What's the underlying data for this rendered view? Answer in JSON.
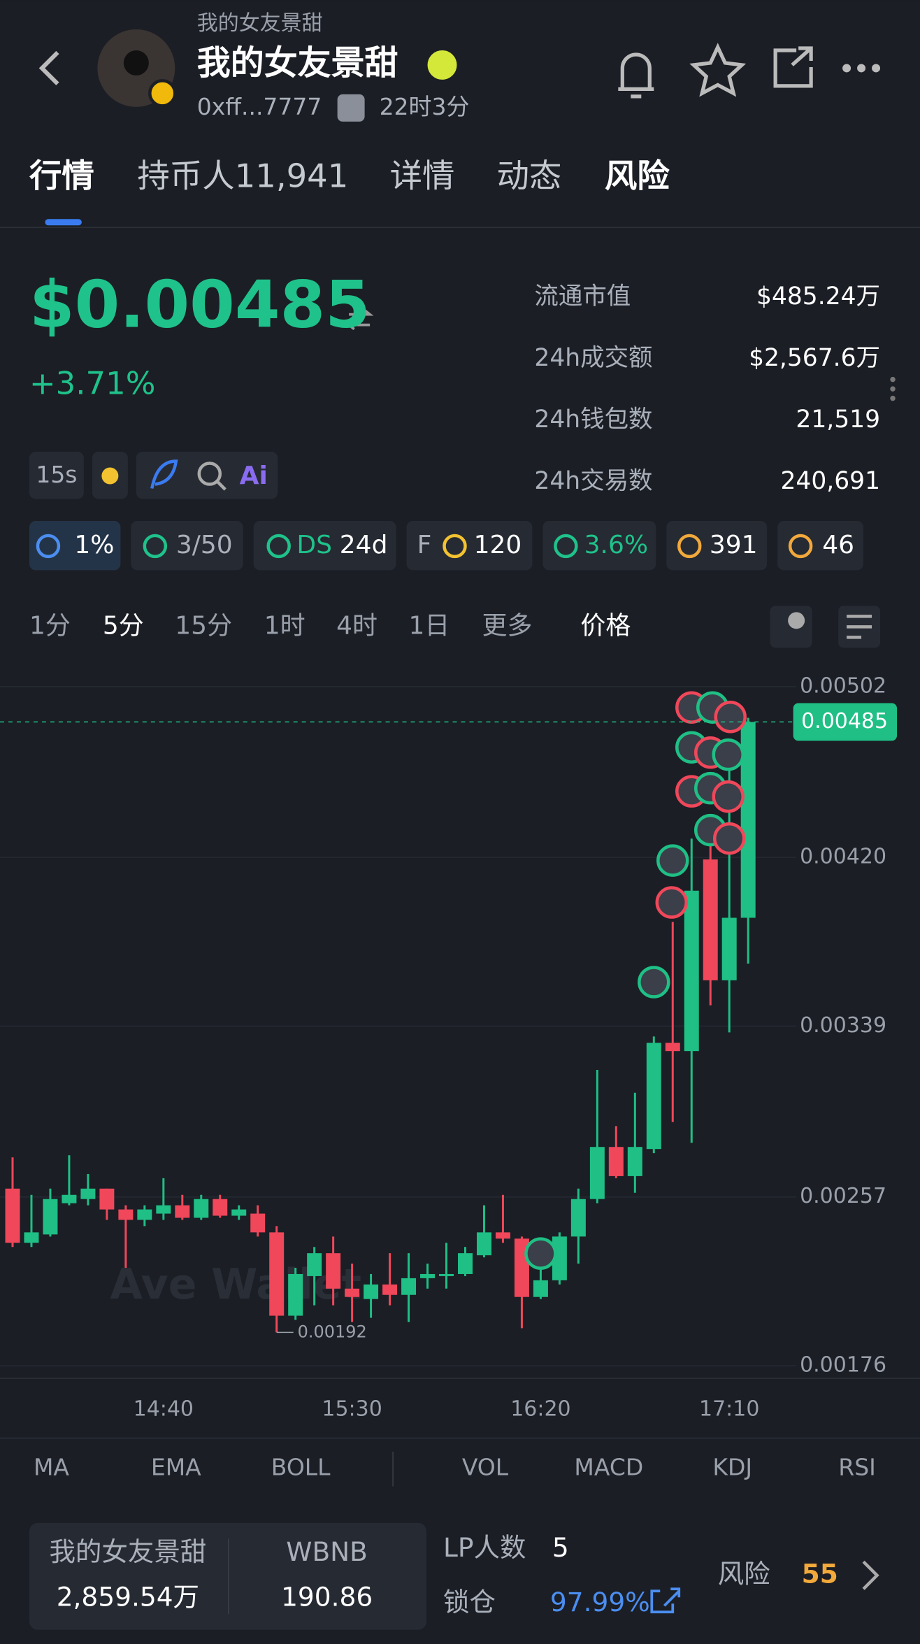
{
  "header": {
    "subtitle": "我的女友景甜",
    "name": "我的女友景甜",
    "address": "0xff...7777",
    "age": "22时3分"
  },
  "tabs": [
    "行情",
    "持币人11,941",
    "详情",
    "动态",
    "风险"
  ],
  "price": {
    "value": "$0.00485",
    "change": "+3.71%"
  },
  "stats": [
    {
      "label": "流通市值",
      "value": "$485.24万"
    },
    {
      "label": "24h成交额",
      "value": "$2,567.6万"
    },
    {
      "label": "24h钱包数",
      "value": "21,519"
    },
    {
      "label": "24h交易数",
      "value": "240,691"
    }
  ],
  "tools": {
    "interval": "15s",
    "ai": "Ai"
  },
  "badges": [
    "1%",
    "3/50",
    "DS",
    "24d",
    "F",
    "120",
    "3.6%",
    "391",
    "46"
  ],
  "timeframes": [
    "1分",
    "5分",
    "15分",
    "1时",
    "4时",
    "1日",
    "更多",
    "价格"
  ],
  "chart_data": {
    "type": "candlestick",
    "watermark": "Ave Wallet",
    "categories": [
      null,
      null,
      null,
      null,
      null,
      null,
      null,
      null,
      "14:40",
      null,
      null,
      null,
      null,
      null,
      null,
      null,
      null,
      null,
      "15:30",
      null,
      null,
      null,
      null,
      null,
      null,
      null,
      null,
      null,
      "16:20",
      null,
      null,
      null,
      null,
      null,
      null,
      null,
      null,
      null,
      "17:10",
      null
    ],
    "open": [
      0.00261,
      0.00235,
      0.00239,
      0.00254,
      0.00256,
      0.00261,
      0.00251,
      0.00246,
      0.00249,
      0.00253,
      0.00247,
      0.00256,
      0.00248,
      0.00249,
      0.0024,
      0.002,
      0.00219,
      0.0023,
      0.00213,
      0.00208,
      0.00215,
      0.0021,
      0.00218,
      0.00219,
      0.0022,
      0.00229,
      0.0024,
      0.00237,
      0.00209,
      0.00217,
      0.00238,
      0.00256,
      0.00281,
      0.00267,
      0.0028,
      0.00331,
      0.00327,
      0.00419,
      0.00361,
      0.00391
    ],
    "high": [
      0.00276,
      0.00258,
      0.00261,
      0.00277,
      0.00268,
      0.00261,
      0.00253,
      0.00253,
      0.00266,
      0.00258,
      0.00258,
      0.00258,
      0.00253,
      0.00253,
      0.00243,
      0.00223,
      0.00233,
      0.00238,
      0.00225,
      0.0022,
      0.0023,
      0.0023,
      0.00225,
      0.00235,
      0.00233,
      0.00253,
      0.00258,
      0.00238,
      0.00225,
      0.0024,
      0.00261,
      0.00318,
      0.00291,
      0.00307,
      0.00334,
      0.00389,
      0.00429,
      0.00429,
      0.00464,
      0.00487
    ],
    "low": [
      0.00233,
      0.00233,
      0.00238,
      0.00253,
      0.00253,
      0.00246,
      0.00223,
      0.00243,
      0.00246,
      0.00246,
      0.00246,
      0.00247,
      0.00246,
      0.00238,
      0.00192,
      0.00198,
      0.00205,
      0.00205,
      0.00197,
      0.00199,
      0.00205,
      0.00197,
      0.00213,
      0.00213,
      0.00219,
      0.00228,
      0.00235,
      0.00194,
      0.00208,
      0.00215,
      0.00225,
      0.00254,
      0.00266,
      0.00259,
      0.00278,
      0.00293,
      0.00283,
      0.00349,
      0.00336,
      0.00369
    ],
    "close": [
      0.00235,
      0.0024,
      0.00256,
      0.00258,
      0.00261,
      0.00251,
      0.00246,
      0.00251,
      0.00253,
      0.00247,
      0.00256,
      0.00248,
      0.00251,
      0.0024,
      0.002,
      0.0022,
      0.0023,
      0.00213,
      0.00209,
      0.00215,
      0.0021,
      0.00218,
      0.0022,
      0.0022,
      0.0023,
      0.0024,
      0.00237,
      0.00209,
      0.00217,
      0.00238,
      0.00256,
      0.00281,
      0.00267,
      0.00281,
      0.00331,
      0.00327,
      0.00404,
      0.00361,
      0.00391,
      0.00485
    ],
    "up_color": "#1fbf85",
    "down_color": "#f0475a",
    "ylim": [
      0.00176,
      0.00502
    ],
    "yticks": [
      0.00502,
      {
        "value": 0.0042,
        "label": "0.00420"
      },
      0.00339,
      0.00257,
      0.00176
    ],
    "current_price": 0.00485,
    "low_label": 0.00192
  },
  "indicators": [
    "MA",
    "EMA",
    "BOLL",
    "VOL",
    "MACD",
    "KDJ",
    "RSI"
  ],
  "pool": [
    {
      "name": "我的女友景甜",
      "amount": "2,859.54万"
    },
    {
      "name": "WBNB",
      "amount": "190.86"
    }
  ],
  "lp": {
    "label": "LP人数",
    "value": "5"
  },
  "lock": {
    "label": "锁仓",
    "value": "97.99%"
  },
  "risk": {
    "label": "风险",
    "value": "55"
  }
}
